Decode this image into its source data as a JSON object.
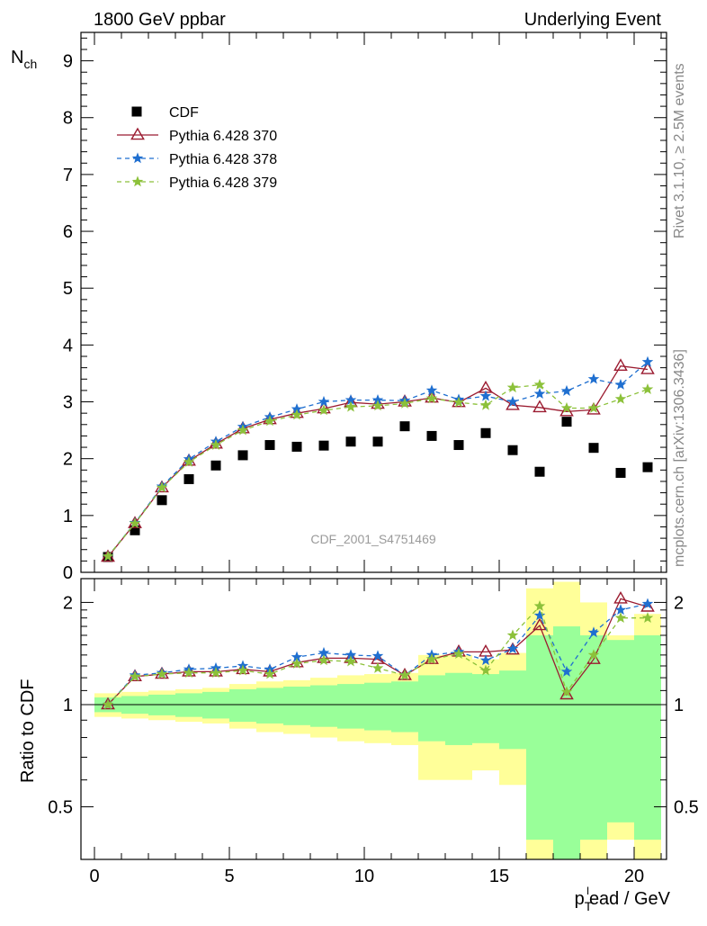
{
  "chart_data": [
    {
      "type": "scatter",
      "title_left": "1800 GeV ppbar",
      "title_right": "Underlying Event",
      "ylabel_main": "N",
      "ylabel_sub": "ch",
      "watermark": "CDF_2001_S4751469",
      "side_text_top": "Rivet 3.1.10, ≥ 2.5M events",
      "side_text_bottom": "mcplots.cern.ch [arXiv:1306.3436]",
      "ylim": [
        0,
        9.5
      ],
      "yticks": [
        "0",
        "1",
        "2",
        "3",
        "4",
        "5",
        "6",
        "7",
        "8",
        "9"
      ],
      "x": [
        0.5,
        1.5,
        2.5,
        3.5,
        4.5,
        5.5,
        6.5,
        7.5,
        8.5,
        9.5,
        10.5,
        11.5,
        12.5,
        13.5,
        14.5,
        15.5,
        16.5,
        17.5,
        18.5,
        19.5,
        20.5
      ],
      "series": [
        {
          "name": "CDF",
          "color": "#000000",
          "marker": "square",
          "values": [
            0.27,
            0.74,
            1.27,
            1.64,
            1.88,
            2.06,
            2.24,
            2.21,
            2.23,
            2.3,
            2.3,
            2.57,
            2.4,
            2.24,
            2.45,
            2.15,
            1.77,
            2.65,
            2.19,
            1.75,
            1.85
          ]
        },
        {
          "name": "Pythia 6.428 370",
          "color": "#9b1b30",
          "marker": "triangle",
          "values": [
            0.27,
            0.86,
            1.49,
            1.96,
            2.26,
            2.53,
            2.69,
            2.8,
            2.88,
            2.99,
            2.96,
            3.0,
            3.07,
            2.99,
            3.24,
            2.94,
            2.9,
            2.83,
            2.86,
            3.63,
            3.57
          ]
        },
        {
          "name": "Pythia 6.428 378",
          "color": "#1f6fd0",
          "marker": "star",
          "values": [
            0.28,
            0.87,
            1.51,
            1.99,
            2.3,
            2.56,
            2.73,
            2.87,
            3.0,
            3.03,
            3.03,
            3.02,
            3.2,
            3.04,
            3.1,
            3.0,
            3.14,
            3.19,
            3.4,
            3.3,
            3.7
          ]
        },
        {
          "name": "Pythia 6.428 379",
          "color": "#8cc13a",
          "marker": "star",
          "values": [
            0.28,
            0.86,
            1.49,
            1.94,
            2.24,
            2.5,
            2.66,
            2.77,
            2.85,
            2.91,
            2.93,
            2.97,
            3.06,
            2.99,
            2.94,
            3.25,
            3.3,
            2.89,
            2.89,
            3.05,
            3.22
          ]
        }
      ]
    },
    {
      "type": "scatter",
      "ylabel": "Ratio to CDF",
      "xlabel_main": "p",
      "xlabel_sub": "T",
      "xlabel_sup": "l",
      "xlabel_rest": "ead / GeV",
      "xlim": [
        -0.5,
        21.2
      ],
      "xticks": [
        "0",
        "5",
        "10",
        "15",
        "20"
      ],
      "ylim": [
        0.35,
        2.35
      ],
      "yticks": [
        "0.5",
        "1",
        "2"
      ],
      "x": [
        0.5,
        1.5,
        2.5,
        3.5,
        4.5,
        5.5,
        6.5,
        7.5,
        8.5,
        9.5,
        10.5,
        11.5,
        12.5,
        13.5,
        14.5,
        15.5,
        16.5,
        17.5,
        18.5,
        19.5,
        20.5
      ],
      "band_inner": [
        0.05,
        0.06,
        0.07,
        0.08,
        0.09,
        0.11,
        0.12,
        0.13,
        0.14,
        0.15,
        0.16,
        0.17,
        0.22,
        0.24,
        0.23,
        0.26,
        0.6,
        0.7,
        0.6,
        0.55,
        0.6
      ],
      "band_outer": [
        0.08,
        0.09,
        0.1,
        0.11,
        0.12,
        0.15,
        0.17,
        0.18,
        0.2,
        0.22,
        0.23,
        0.24,
        0.4,
        0.4,
        0.36,
        0.42,
        1.2,
        1.3,
        1.0,
        0.6,
        0.85
      ],
      "series": [
        {
          "name": "Pythia 6.428 370",
          "color": "#9b1b30",
          "values": [
            1.0,
            1.21,
            1.23,
            1.25,
            1.25,
            1.27,
            1.25,
            1.33,
            1.37,
            1.37,
            1.36,
            1.22,
            1.36,
            1.43,
            1.43,
            1.45,
            1.71,
            1.07,
            1.36,
            2.05,
            1.94
          ]
        },
        {
          "name": "Pythia 6.428 378",
          "color": "#1f6fd0",
          "values": [
            1.0,
            1.22,
            1.24,
            1.27,
            1.28,
            1.3,
            1.27,
            1.38,
            1.42,
            1.4,
            1.39,
            1.22,
            1.4,
            1.43,
            1.35,
            1.46,
            1.83,
            1.25,
            1.63,
            1.9,
            1.98
          ]
        },
        {
          "name": "Pythia 6.428 379",
          "color": "#8cc13a",
          "values": [
            1.0,
            1.21,
            1.23,
            1.24,
            1.24,
            1.26,
            1.23,
            1.32,
            1.35,
            1.34,
            1.28,
            1.22,
            1.36,
            1.41,
            1.26,
            1.6,
            1.95,
            1.09,
            1.4,
            1.8,
            1.8
          ]
        }
      ]
    }
  ]
}
